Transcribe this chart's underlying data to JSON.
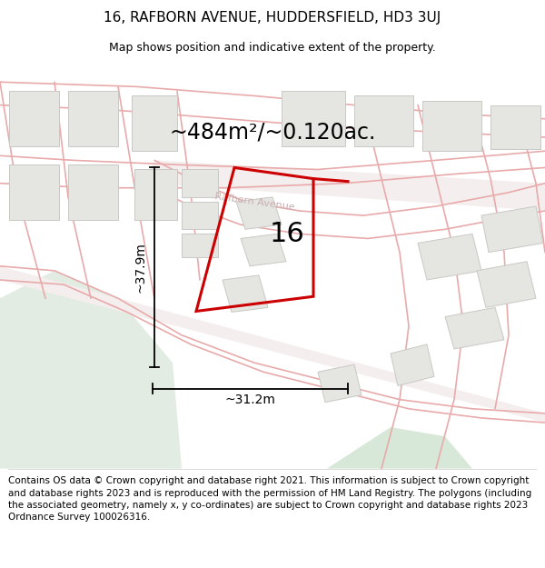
{
  "title": "16, RAFBORN AVENUE, HUDDERSFIELD, HD3 3UJ",
  "subtitle": "Map shows position and indicative extent of the property.",
  "area_label": "~484m²/~0.120ac.",
  "dim_width": "~31.2m",
  "dim_height": "~37.9m",
  "house_number": "16",
  "footer": "Contains OS data © Crown copyright and database right 2021. This information is subject to Crown copyright and database rights 2023 and is reproduced with the permission of HM Land Registry. The polygons (including the associated geometry, namely x, y co-ordinates) are subject to Crown copyright and database rights 2023 Ordnance Survey 100026316.",
  "bg_light": "#f5f5f2",
  "bg_green": "#e8ede8",
  "bg_green2": "#dde8dd",
  "building_fill": "#e8e8e5",
  "building_edge": "#cccccc",
  "road_line": "#f0b0b0",
  "road_fill": "#f8eded",
  "plot_edge": "#cc0000",
  "text_gray": "#b0a0a0",
  "title_fontsize": 11,
  "subtitle_fontsize": 9,
  "area_fontsize": 17,
  "number_fontsize": 22,
  "dim_fontsize": 10,
  "footer_fontsize": 7.5
}
